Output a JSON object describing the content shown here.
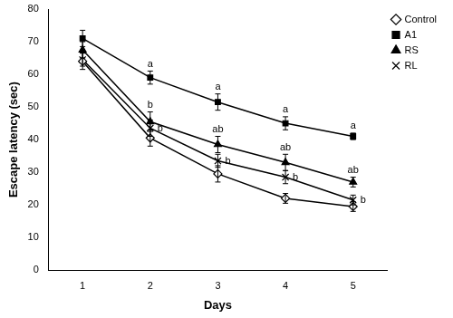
{
  "chart_data": {
    "type": "line",
    "x_label": "Days",
    "y_label": "Escape latency (sec)",
    "categories": [
      "1",
      "2",
      "3",
      "4",
      "5"
    ],
    "ylim": [
      0,
      80
    ],
    "yticks": [
      0,
      10,
      20,
      30,
      40,
      50,
      60,
      70,
      80
    ],
    "grid": false,
    "legend": "right",
    "series": [
      {
        "name": "Control",
        "color": "#000000",
        "marker": "diamond-open",
        "values": [
          64,
          40.5,
          29.5,
          22,
          19.5
        ],
        "errors": [
          2.5,
          2.5,
          2.5,
          1.5,
          1.5
        ]
      },
      {
        "name": "A1",
        "color": "#000000",
        "marker": "square",
        "values": [
          71,
          59,
          51.5,
          45,
          41
        ],
        "errors": [
          2.5,
          2,
          2.5,
          2,
          1
        ],
        "significance": [
          null,
          "a",
          "a",
          "a",
          "a"
        ]
      },
      {
        "name": "RS",
        "color": "#000000",
        "marker": "triangle",
        "values": [
          67.5,
          45.5,
          38.5,
          33,
          27
        ],
        "errors": [
          2.5,
          3,
          2.5,
          2.5,
          1.5
        ],
        "significance": [
          null,
          "b",
          "ab",
          "ab",
          "ab"
        ]
      },
      {
        "name": "RL",
        "color": "#000000",
        "marker": "x",
        "values": [
          64.5,
          43.5,
          33.5,
          28.5,
          21.5
        ],
        "errors": [
          2,
          2.5,
          2,
          2,
          1.5
        ],
        "significance": [
          null,
          "b",
          "b",
          "b",
          "b"
        ]
      }
    ]
  }
}
